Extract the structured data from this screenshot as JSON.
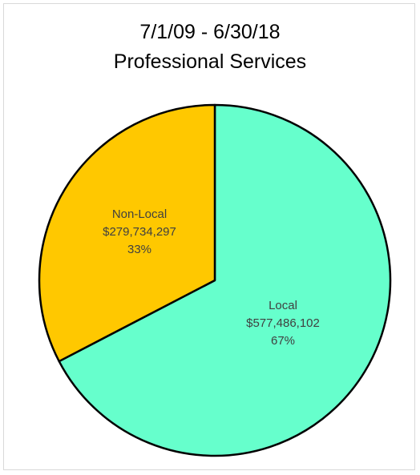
{
  "chart_data": {
    "type": "pie",
    "title": "7/1/09 - 6/30/18",
    "subtitle": "Professional Services",
    "slices": [
      {
        "name": "Local",
        "value": 577486102,
        "value_label": "$577,486,102",
        "percent": 67,
        "percent_label": "67%",
        "color": "#66ffcc"
      },
      {
        "name": "Non-Local",
        "value": 279734297,
        "value_label": "$279,734,297",
        "percent": 33,
        "percent_label": "33%",
        "color": "#ffc800"
      }
    ],
    "start_angle": "12 o'clock",
    "direction": "clockwise",
    "border_color": "#000000",
    "legend": "none"
  }
}
